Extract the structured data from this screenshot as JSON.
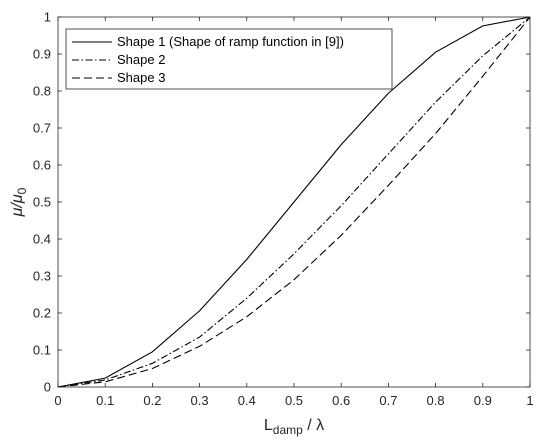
{
  "chart_data": {
    "type": "line",
    "xlabel": {
      "main": "L",
      "sub": "damp",
      "rest": " / λ"
    },
    "ylabel": {
      "main": "μ/μ",
      "sub": "0"
    },
    "xlim": [
      0,
      1
    ],
    "ylim": [
      0,
      1
    ],
    "xticks": [
      "0",
      "0.1",
      "0.2",
      "0.3",
      "0.4",
      "0.5",
      "0.6",
      "0.7",
      "0.8",
      "0.9",
      "1"
    ],
    "yticks": [
      "0",
      "0.1",
      "0.2",
      "0.3",
      "0.4",
      "0.5",
      "0.6",
      "0.7",
      "0.8",
      "0.9",
      "1"
    ],
    "grid": false,
    "legend_position": "top-left",
    "x": [
      0,
      0.1,
      0.2,
      0.3,
      0.4,
      0.5,
      0.6,
      0.7,
      0.8,
      0.9,
      1.0
    ],
    "series": [
      {
        "name": "Shape 1 (Shape of ramp function in [9])",
        "style": "solid",
        "values": [
          0,
          0.024,
          0.095,
          0.206,
          0.345,
          0.5,
          0.655,
          0.794,
          0.905,
          0.976,
          1.0
        ]
      },
      {
        "name": "Shape 2",
        "style": "dashdot",
        "values": [
          0,
          0.019,
          0.064,
          0.135,
          0.24,
          0.36,
          0.49,
          0.63,
          0.77,
          0.895,
          1.0
        ]
      },
      {
        "name": "Shape 3",
        "style": "dashed",
        "values": [
          0,
          0.014,
          0.05,
          0.11,
          0.19,
          0.29,
          0.41,
          0.545,
          0.685,
          0.84,
          1.0
        ]
      }
    ]
  }
}
